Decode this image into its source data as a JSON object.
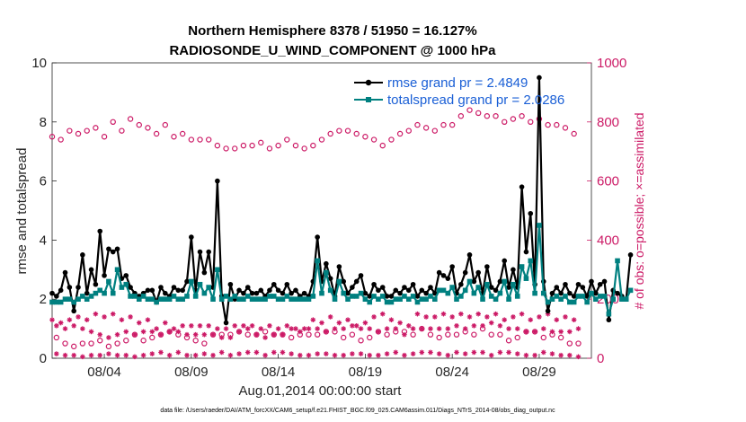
{
  "chart_data": {
    "type": "line",
    "title": "Northern Hemisphere 8378 / 51950 = 16.127%",
    "subtitle": "RADIOSONDE_U_WIND_COMPONENT @ 1000 hPa",
    "xlabel": "Aug.01,2014 00:00:00 start",
    "ylabel": "rmse and totalspread",
    "y2label": "# of obs: o=possible; ×=assimilated",
    "footnote": "data file: /Users/raeder/DAI/ATM_forcXX/CAM6_setup/f.e21.FHIST_BGC.f09_025.CAM6assim.011/Diags_NTrS_2014-08/obs_diag_output.nc",
    "x_start_day": 1,
    "x_range_days": [
      1,
      32
    ],
    "x_ticks": [
      {
        "day": 4,
        "label": "08/04"
      },
      {
        "day": 9,
        "label": "08/09"
      },
      {
        "day": 14,
        "label": "08/14"
      },
      {
        "day": 19,
        "label": "08/19"
      },
      {
        "day": 24,
        "label": "08/24"
      },
      {
        "day": 29,
        "label": "08/29"
      }
    ],
    "ylim": [
      0,
      10
    ],
    "yticks": [
      0,
      2,
      4,
      6,
      8,
      10
    ],
    "y2lim": [
      0,
      1000
    ],
    "y2ticks": [
      0,
      200,
      400,
      600,
      800,
      1000
    ],
    "legend_position": "top-right",
    "colors": {
      "rmse": "#000000",
      "spread": "#008080",
      "obs": "#cc1a66"
    },
    "series": [
      {
        "name": "rmse grand pr = 2.4849",
        "key": "rmse",
        "values": [
          2.2,
          2.1,
          2.3,
          2.9,
          2.4,
          1.6,
          2.4,
          3.5,
          2.2,
          3.0,
          2.5,
          4.3,
          2.8,
          3.7,
          3.6,
          3.7,
          2.7,
          2.8,
          2.4,
          2.2,
          2.1,
          2.2,
          2.3,
          2.3,
          1.9,
          2.4,
          2.2,
          2.1,
          2.4,
          2.3,
          2.3,
          2.6,
          4.1,
          2.3,
          3.6,
          2.9,
          3.6,
          2.4,
          6.0,
          2.1,
          1.2,
          2.5,
          2.0,
          2.3,
          2.2,
          2.4,
          2.2,
          2.2,
          2.3,
          2.1,
          2.3,
          2.5,
          2.3,
          2.2,
          2.5,
          2.2,
          2.3,
          2.1,
          2.2,
          2.1,
          2.6,
          4.1,
          2.6,
          3.2,
          2.7,
          2.1,
          3.1,
          2.6,
          2.2,
          2.4,
          2.6,
          2.8,
          2.2,
          2.1,
          2.5,
          2.3,
          2.4,
          2.1,
          2.1,
          2.3,
          2.2,
          2.4,
          2.3,
          2.5,
          2.1,
          2.3,
          2.2,
          2.4,
          2.2,
          2.9,
          2.8,
          2.7,
          3.1,
          2.2,
          2.5,
          2.9,
          3.5,
          2.6,
          2.9,
          2.2,
          3.1,
          2.4,
          2.3,
          2.6,
          3.3,
          2.4,
          3.0,
          2.4,
          5.8,
          3.6,
          4.9,
          2.5,
          9.5,
          2.6,
          1.6,
          2.2,
          2.4,
          2.2,
          2.5,
          2.2,
          2.1,
          2.5,
          2.4,
          2.1,
          2.6,
          2.2,
          2.5,
          2.6,
          1.3,
          2.3,
          2.2,
          2.1,
          2.0,
          3.5
        ]
      },
      {
        "name": "totalspread grand pr = 2.0286",
        "key": "spread",
        "values": [
          1.9,
          1.9,
          1.9,
          2.0,
          2.0,
          1.9,
          2.0,
          2.1,
          2.0,
          2.1,
          2.2,
          2.3,
          2.2,
          2.6,
          2.2,
          3.0,
          2.4,
          2.5,
          2.1,
          2.1,
          2.0,
          2.1,
          2.0,
          2.0,
          1.9,
          2.0,
          2.0,
          2.0,
          2.1,
          2.0,
          2.0,
          2.1,
          2.6,
          2.1,
          2.5,
          2.2,
          2.4,
          2.0,
          3.0,
          2.0,
          2.1,
          2.0,
          2.1,
          2.0,
          2.0,
          2.1,
          2.0,
          2.0,
          2.0,
          2.0,
          2.1,
          2.1,
          2.0,
          2.0,
          2.1,
          2.0,
          2.0,
          2.0,
          2.0,
          2.0,
          2.1,
          3.3,
          2.2,
          2.9,
          2.3,
          2.0,
          2.6,
          2.2,
          2.0,
          2.1,
          2.1,
          2.2,
          2.0,
          1.9,
          2.1,
          2.0,
          2.1,
          1.9,
          1.9,
          2.0,
          2.0,
          2.1,
          2.0,
          2.1,
          1.9,
          2.0,
          2.0,
          2.1,
          2.0,
          2.3,
          2.3,
          2.2,
          2.4,
          2.0,
          2.1,
          2.3,
          2.6,
          2.2,
          2.4,
          2.0,
          2.5,
          2.1,
          2.0,
          2.2,
          2.6,
          2.0,
          2.5,
          2.1,
          3.1,
          2.7,
          3.3,
          2.2,
          4.5,
          2.2,
          1.9,
          2.0,
          2.1,
          2.0,
          2.1,
          1.9,
          1.9,
          2.1,
          2.1,
          1.9,
          2.2,
          2.0,
          2.1,
          2.1,
          1.5,
          2.0,
          3.3,
          2.0,
          2.0,
          2.3
        ]
      }
    ],
    "obs_possible_even": [
      750,
      740,
      770,
      760,
      770,
      780,
      750,
      800,
      770,
      810,
      790,
      780,
      760,
      790,
      750,
      760,
      740,
      740,
      740,
      720,
      710,
      710,
      720,
      720,
      730,
      710,
      720,
      740,
      720,
      710,
      720,
      740,
      760,
      770,
      770,
      760,
      750,
      740,
      720,
      740,
      760,
      770,
      790,
      780,
      770,
      790,
      790,
      820,
      840,
      830,
      820,
      820,
      800,
      810,
      820,
      800,
      810,
      790,
      790,
      780,
      760
    ],
    "obs_possible_odd": [
      70,
      50,
      40,
      50,
      50,
      60,
      40,
      50,
      60,
      80,
      60,
      70,
      80,
      90,
      80,
      70,
      60,
      50,
      80,
      80,
      80,
      90,
      80,
      80,
      90,
      80,
      80,
      70,
      80,
      80,
      80,
      90,
      90,
      70,
      80,
      60,
      70,
      90,
      80,
      90,
      90,
      80,
      100,
      80,
      70,
      80,
      80,
      90,
      80,
      100,
      80,
      80,
      60,
      70,
      90,
      90,
      70,
      80,
      70,
      50,
      50
    ],
    "obs_assim_high": [
      130,
      120,
      130,
      140,
      130,
      150,
      140,
      150,
      130,
      140,
      120,
      130,
      100,
      120,
      100,
      110,
      110,
      110,
      110,
      100,
      100,
      110,
      110,
      110,
      100,
      110,
      100,
      110,
      100,
      100,
      130,
      120,
      140,
      120,
      130,
      110,
      120,
      140,
      150,
      130,
      120,
      110,
      150,
      140,
      140,
      150,
      140,
      150,
      140,
      150,
      140,
      150,
      130,
      140,
      150,
      130,
      140,
      150,
      130,
      140,
      130
    ],
    "obs_assim_mid": [
      110,
      100,
      110,
      100,
      90,
      80,
      70,
      80,
      90,
      80,
      90,
      90,
      80,
      90,
      90,
      80,
      80,
      80,
      80,
      70,
      70,
      90,
      100,
      80,
      70,
      80,
      80,
      100,
      90,
      100,
      100,
      90,
      100,
      100,
      110,
      100,
      100,
      90,
      100,
      100,
      80,
      100,
      100,
      100,
      100,
      100,
      110,
      100,
      110,
      110,
      120,
      110,
      100,
      100,
      90,
      90,
      100,
      90,
      90,
      90,
      100
    ],
    "obs_assim_low": [
      15,
      10,
      10,
      5,
      10,
      10,
      15,
      10,
      10,
      5,
      10,
      15,
      20,
      10,
      20,
      10,
      10,
      15,
      10,
      20,
      10,
      15,
      20,
      20,
      10,
      20,
      20,
      15,
      10,
      10,
      15,
      15,
      10,
      10,
      15,
      15,
      10,
      10,
      15,
      20,
      10,
      15,
      20,
      20,
      15,
      10,
      20,
      15,
      20,
      20,
      10,
      20,
      20,
      15,
      10,
      10,
      20,
      15,
      10,
      10,
      5
    ]
  }
}
